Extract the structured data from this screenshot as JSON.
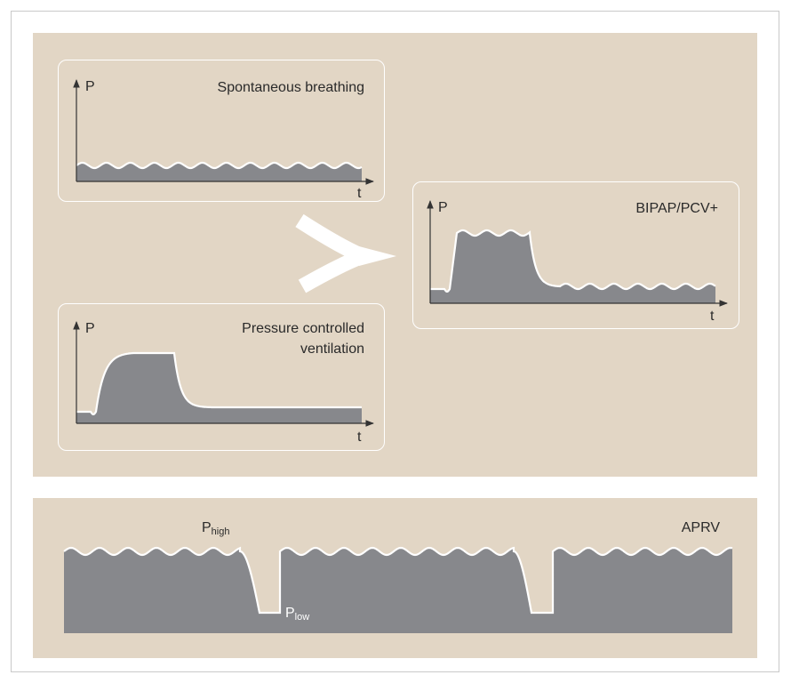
{
  "diagram": {
    "axis_labels": {
      "p": "P",
      "t": "t"
    },
    "modes": {
      "spontaneous": {
        "title": "Spontaneous breathing"
      },
      "pcv": {
        "title_line1": "Pressure controlled",
        "title_line2": "ventilation"
      },
      "bipap": {
        "title": "BIPAP/PCV+"
      },
      "aprv": {
        "title": "APRV",
        "p_high": {
          "base": "P",
          "sub": "high"
        },
        "p_low": {
          "base": "P",
          "sub": "low"
        }
      }
    },
    "colors": {
      "background_panel": "#e2d6c5",
      "fill": "#87888c",
      "line": "#ffffff",
      "axis": "#333333",
      "text": "#2a2a2a"
    },
    "icons": {
      "merge_arrow": "merge-arrow-icon"
    }
  }
}
